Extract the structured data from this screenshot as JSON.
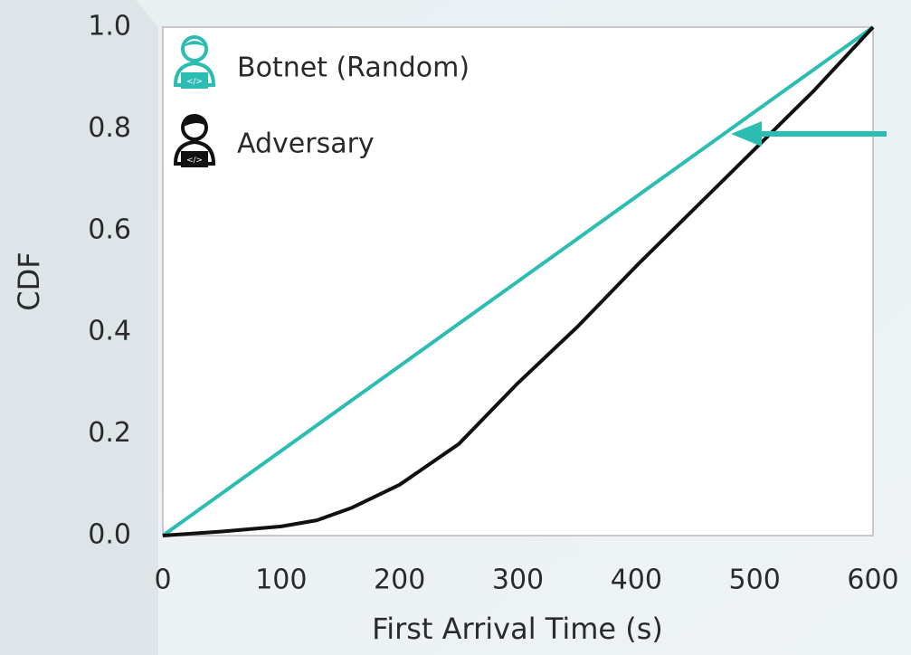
{
  "chart_data": {
    "type": "line",
    "xlabel": "First Arrival Time (s)",
    "ylabel": "CDF",
    "xlim": [
      0,
      600
    ],
    "ylim": [
      0,
      1
    ],
    "xticks": [
      0,
      100,
      200,
      300,
      400,
      500,
      600
    ],
    "yticks": [
      {
        "value": 0,
        "label": "0.0"
      },
      0.2,
      0.4,
      0.6,
      0.8,
      {
        "value": 1,
        "label": "1.0"
      }
    ],
    "legend": "upper left",
    "series": [
      {
        "name": "Botnet (Random)",
        "color": "#2bbcb2",
        "x": [
          0,
          600
        ],
        "values": [
          0,
          1
        ]
      },
      {
        "name": "Adversary",
        "color": "#111111",
        "x": [
          0,
          50,
          100,
          130,
          160,
          200,
          250,
          300,
          350,
          400,
          450,
          500,
          550,
          600
        ],
        "values": [
          0,
          0.008,
          0.018,
          0.03,
          0.055,
          0.1,
          0.18,
          0.3,
          0.41,
          0.53,
          0.645,
          0.76,
          0.875,
          1.0
        ]
      }
    ]
  }
}
